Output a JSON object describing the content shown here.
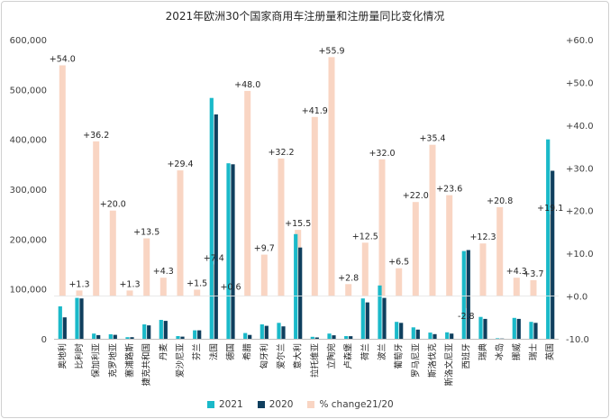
{
  "chart_data": {
    "type": "bar",
    "title": "2021年欧洲30个国家商用车注册量和注册量同比变化情况",
    "categories": [
      "奥地利",
      "比利时",
      "保加利亚",
      "克罗地亚",
      "塞浦路斯",
      "捷克共和国",
      "丹麦",
      "爱沙尼亚",
      "芬兰",
      "法国",
      "德国",
      "希腊",
      "匈牙利",
      "爱尔兰",
      "意大利",
      "拉托维亚",
      "立陶宛",
      "卢森堡",
      "荷兰",
      "波兰",
      "葡萄牙",
      "罗马尼亚",
      "斯洛伐克",
      "斯洛文尼亚",
      "西班牙",
      "瑞典",
      "冰岛",
      "挪威",
      "瑞士",
      "英国"
    ],
    "series": [
      {
        "name": "2021",
        "axis": "left",
        "color": "#1ab9c9",
        "values": [
          65000,
          82000,
          10500,
          9000,
          3300,
          29000,
          38000,
          5500,
          17000,
          483000,
          352000,
          11500,
          29000,
          32000,
          210000,
          4000,
          10500,
          5500,
          81000,
          107000,
          34000,
          23000,
          12500,
          13000,
          176000,
          44000,
          1000,
          42000,
          34000,
          400000
        ]
      },
      {
        "name": "2020",
        "axis": "left",
        "color": "#0f3f5e",
        "values": [
          43000,
          81000,
          7500,
          8000,
          3300,
          27000,
          36000,
          4300,
          17000,
          450000,
          350000,
          7800,
          26000,
          25000,
          183000,
          2800,
          7000,
          5300,
          73000,
          82000,
          32000,
          18500,
          9400,
          10500,
          178000,
          40000,
          500,
          40000,
          32000,
          337000
        ]
      },
      {
        "name": "% change21/20",
        "axis": "right",
        "color": "#f9d5c3",
        "values": [
          54.0,
          1.3,
          36.2,
          20.0,
          1.3,
          13.5,
          4.3,
          29.4,
          1.5,
          7.4,
          0.6,
          48.0,
          9.7,
          32.2,
          15.5,
          41.9,
          55.9,
          2.8,
          12.5,
          32.0,
          6.5,
          22.0,
          35.4,
          23.6,
          -2.8,
          12.3,
          20.8,
          4.3,
          3.7,
          19.1
        ],
        "labels": [
          "+54.0",
          "+1.3",
          "+36.2",
          "+20.0",
          "+1.3",
          "+13.5",
          "+4.3",
          "+29.4",
          "+1.5",
          "+7.4",
          "+0.6",
          "+48.0",
          "+9.7",
          "+32.2",
          "+15.5",
          "+41.9",
          "+55.9",
          "+2.8",
          "+12.5",
          "+32.0",
          "+6.5",
          "+22.0",
          "+35.4",
          "+23.6",
          "-2.8",
          "+12.3",
          "+20.8",
          "+4.3",
          "+3.7",
          "+19.1"
        ]
      }
    ],
    "y_left": {
      "min": 0,
      "max": 600000,
      "step": 100000,
      "tick_labels": [
        "0",
        "100,000",
        "200,000",
        "300,000",
        "400,000",
        "500,000",
        "600,000"
      ]
    },
    "y_right": {
      "min": -10,
      "max": 60,
      "step": 10,
      "tick_labels": [
        "-10.0",
        "+0.0",
        "+10.0",
        "+20.0",
        "+30.0",
        "+40.0",
        "+50.0",
        "+60.0"
      ]
    },
    "legend": {
      "position": "bottom",
      "entries": [
        "2021",
        "2020",
        "% change21/20"
      ]
    },
    "grid": false
  }
}
